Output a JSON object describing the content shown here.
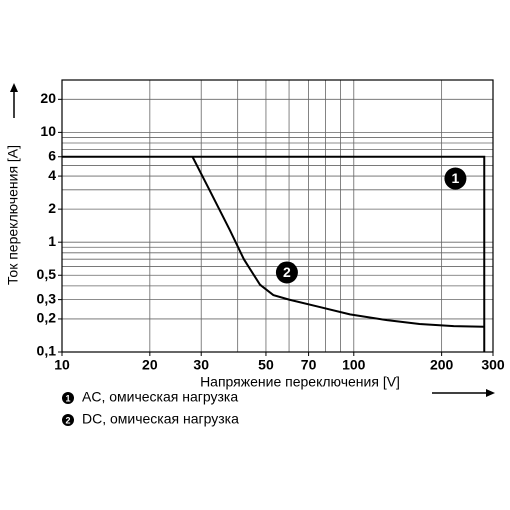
{
  "chart_data": {
    "type": "line",
    "xlabel": "Напряжение переключения [V]",
    "ylabel": "Ток переключения [A]",
    "log_x": true,
    "log_y": true,
    "xlim": [
      10,
      300
    ],
    "ylim": [
      0.1,
      30
    ],
    "xticks": [
      10,
      20,
      30,
      50,
      70,
      100,
      200,
      300
    ],
    "yticks": [
      {
        "value": 0.1,
        "label": "0,1"
      },
      {
        "value": 0.2,
        "label": "0,2"
      },
      {
        "value": 0.3,
        "label": "0,3"
      },
      {
        "value": 0.5,
        "label": "0,5"
      },
      1,
      2,
      4,
      6,
      10,
      20
    ],
    "x_grid": [
      10,
      20,
      30,
      40,
      50,
      60,
      70,
      80,
      90,
      100,
      200,
      300
    ],
    "y_grid": [
      0.1,
      0.2,
      0.3,
      0.4,
      0.5,
      0.6,
      0.7,
      0.8,
      0.9,
      1,
      2,
      3,
      4,
      5,
      6,
      7,
      8,
      9,
      10,
      20,
      30
    ],
    "grid": true,
    "series": [
      {
        "name": "AC, омическая нагрузка",
        "marker": "1",
        "color": "#000000",
        "x": [
          10,
          280,
          280
        ],
        "values": [
          6,
          6,
          0.1
        ],
        "annotation": {
          "x": 223,
          "y": 3.8
        }
      },
      {
        "name": "DC, омическая нагрузка",
        "marker": "2",
        "color": "#000000",
        "x": [
          28,
          32,
          37.6,
          42,
          47.7,
          53,
          60,
          75,
          97,
          130,
          168,
          220,
          280
        ],
        "values": [
          6,
          3,
          1.29,
          0.7,
          0.41,
          0.33,
          0.3,
          0.26,
          0.22,
          0.195,
          0.18,
          0.172,
          0.17
        ],
        "annotation": {
          "x": 59,
          "y": 0.53
        }
      }
    ]
  }
}
